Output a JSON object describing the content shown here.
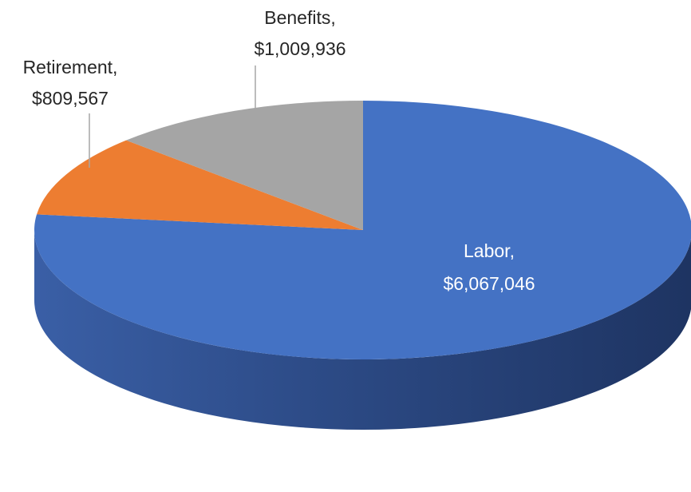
{
  "chart_data": {
    "type": "pie",
    "style": "3d",
    "title": "",
    "slices": [
      {
        "label": "Labor",
        "value": 6067046,
        "value_text": "$6,067,046",
        "color": "#4472C4",
        "label_color": "#ffffff"
      },
      {
        "label": "Retirement",
        "value": 809567,
        "value_text": "$809,567",
        "color": "#ED7D31",
        "label_color": "#262626"
      },
      {
        "label": "Benefits",
        "value": 1009936,
        "value_text": "$1,009,936",
        "color": "#A5A5A5",
        "label_color": "#262626"
      }
    ]
  }
}
